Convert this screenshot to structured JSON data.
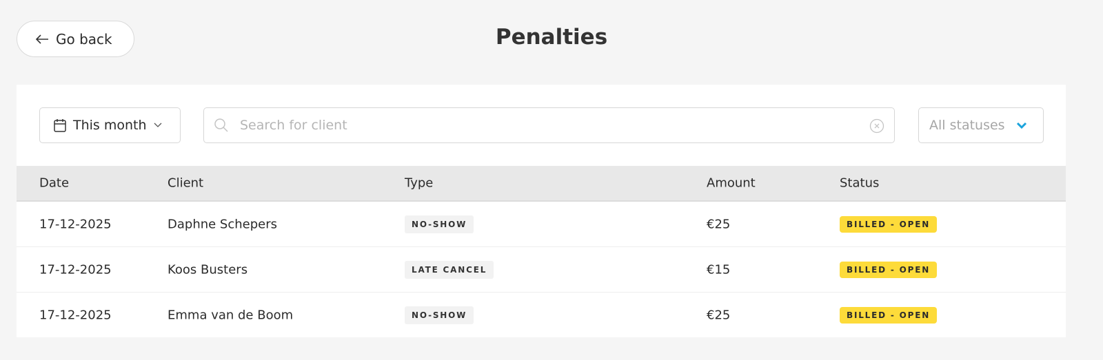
{
  "header": {
    "back_label": "Go back",
    "title": "Penalties"
  },
  "filters": {
    "date_range": "This month",
    "search_placeholder": "Search for client",
    "search_value": "",
    "status": "All statuses"
  },
  "table": {
    "columns": [
      "Date",
      "Client",
      "Type",
      "Amount",
      "Status"
    ],
    "rows": [
      {
        "date": "17-12-2025",
        "client": "Daphne Schepers",
        "type": "NO-SHOW",
        "amount": "€25",
        "status": "BILLED - OPEN"
      },
      {
        "date": "17-12-2025",
        "client": "Koos Busters",
        "type": "LATE CANCEL",
        "amount": "€15",
        "status": "BILLED - OPEN"
      },
      {
        "date": "17-12-2025",
        "client": "Emma van de Boom",
        "type": "NO-SHOW",
        "amount": "€25",
        "status": "BILLED - OPEN"
      }
    ]
  },
  "colors": {
    "background": "#f5f5f5",
    "status_badge": "#fddb3a",
    "accent": "#1aa3dc"
  }
}
